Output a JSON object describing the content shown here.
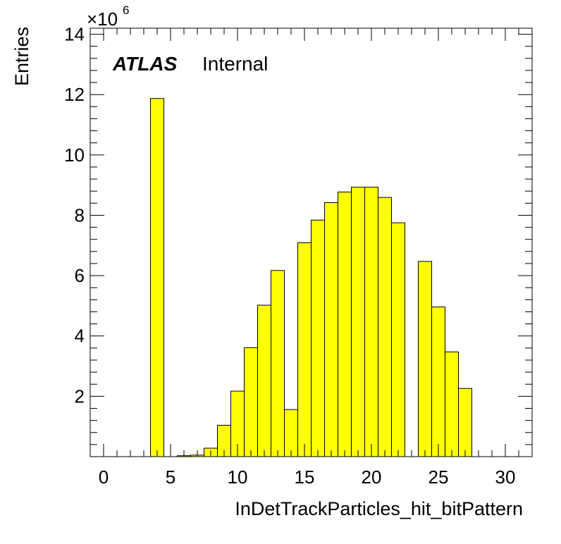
{
  "chart_data": {
    "type": "bar",
    "title": "",
    "xlabel": "InDetTrackParticles_hit_bitPattern",
    "ylabel": "Entries",
    "y_multiplier": "×10",
    "y_multiplier_exp": "6",
    "xlim": [
      -1,
      32
    ],
    "ylim": [
      0,
      14.2
    ],
    "x_ticks": [
      0,
      5,
      10,
      15,
      20,
      25,
      30
    ],
    "y_ticks": [
      2,
      4,
      6,
      8,
      10,
      12,
      14
    ],
    "bin_width": 1,
    "bins": [
      {
        "x": 4,
        "value": 11.87
      },
      {
        "x": 6,
        "value": 0.03
      },
      {
        "x": 7,
        "value": 0.05
      },
      {
        "x": 8,
        "value": 0.28
      },
      {
        "x": 9,
        "value": 1.04
      },
      {
        "x": 10,
        "value": 2.17
      },
      {
        "x": 11,
        "value": 3.61
      },
      {
        "x": 12,
        "value": 5.02
      },
      {
        "x": 13,
        "value": 6.17
      },
      {
        "x": 14,
        "value": 1.56
      },
      {
        "x": 15,
        "value": 7.09
      },
      {
        "x": 16,
        "value": 7.84
      },
      {
        "x": 17,
        "value": 8.42
      },
      {
        "x": 18,
        "value": 8.77
      },
      {
        "x": 19,
        "value": 8.93
      },
      {
        "x": 20,
        "value": 8.93
      },
      {
        "x": 21,
        "value": 8.59
      },
      {
        "x": 22,
        "value": 7.75
      },
      {
        "x": 24,
        "value": 6.47
      },
      {
        "x": 25,
        "value": 4.96
      },
      {
        "x": 26,
        "value": 3.47
      },
      {
        "x": 27,
        "value": 2.26
      }
    ],
    "fill_color": "#ffff00",
    "line_color": "#000000"
  },
  "annotation": {
    "atlas": "ATLAS",
    "status": "Internal"
  }
}
